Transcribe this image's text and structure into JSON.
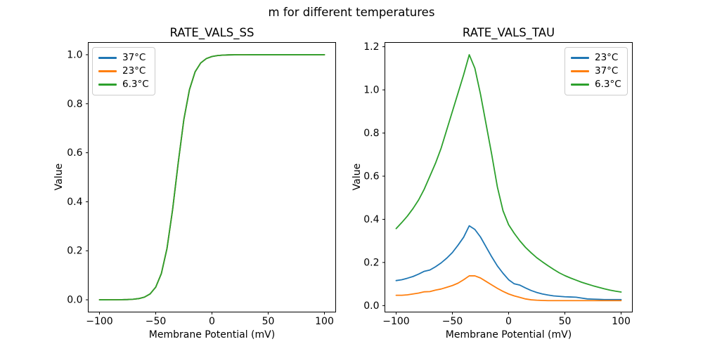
{
  "figure": {
    "suptitle": "m for different temperatures",
    "background_color": "#ffffff",
    "text_color": "#000000",
    "spine_color": "#000000",
    "palette": {
      "blue": "#1f77b4",
      "orange": "#ff7f0e",
      "green": "#2ca02c"
    }
  },
  "chart_data": [
    {
      "type": "line",
      "title": "RATE_VALS_SS",
      "xlabel": "Membrane Potential (mV)",
      "ylabel": "Value",
      "grid": false,
      "legend_position": "upper-left",
      "xlim": [
        -110,
        110
      ],
      "ylim": [
        -0.05,
        1.05
      ],
      "xticks": [
        -100,
        -50,
        0,
        50,
        100
      ],
      "xtick_labels": [
        "−100",
        "−50",
        "0",
        "50",
        "100"
      ],
      "yticks": [
        0.0,
        0.2,
        0.4,
        0.6,
        0.8,
        1.0
      ],
      "ytick_labels": [
        "0.0",
        "0.2",
        "0.4",
        "0.6",
        "0.8",
        "1.0"
      ],
      "x": [
        -100,
        -95,
        -90,
        -85,
        -80,
        -75,
        -70,
        -65,
        -60,
        -55,
        -50,
        -45,
        -40,
        -35,
        -30,
        -25,
        -20,
        -15,
        -10,
        -5,
        0,
        5,
        10,
        15,
        20,
        25,
        30,
        35,
        40,
        45,
        50,
        55,
        60,
        65,
        70,
        75,
        80,
        85,
        90,
        95,
        100
      ],
      "series": [
        {
          "name": "37°C",
          "color": "#1f77b4",
          "values": [
            0.0,
            0.0,
            0.0001,
            0.0002,
            0.0004,
            0.001,
            0.0022,
            0.0049,
            0.0109,
            0.0239,
            0.0515,
            0.1068,
            0.2087,
            0.3674,
            0.5589,
            0.7352,
            0.8575,
            0.93,
            0.9664,
            0.9843,
            0.9927,
            0.9966,
            0.9984,
            0.9993,
            0.9997,
            0.9998,
            0.9999,
            1.0,
            1.0,
            1.0,
            1.0,
            1.0,
            1.0,
            1.0,
            1.0,
            1.0,
            1.0,
            1.0,
            1.0,
            1.0,
            1.0
          ]
        },
        {
          "name": "23°C",
          "color": "#ff7f0e",
          "values": [
            0.0,
            0.0,
            0.0001,
            0.0002,
            0.0004,
            0.001,
            0.0022,
            0.0049,
            0.0109,
            0.0239,
            0.0515,
            0.1068,
            0.2087,
            0.3674,
            0.5589,
            0.7352,
            0.8575,
            0.93,
            0.9664,
            0.9843,
            0.9927,
            0.9966,
            0.9984,
            0.9993,
            0.9997,
            0.9998,
            0.9999,
            1.0,
            1.0,
            1.0,
            1.0,
            1.0,
            1.0,
            1.0,
            1.0,
            1.0,
            1.0,
            1.0,
            1.0,
            1.0,
            1.0
          ]
        },
        {
          "name": "6.3°C",
          "color": "#2ca02c",
          "values": [
            0.0,
            0.0,
            0.0001,
            0.0002,
            0.0004,
            0.001,
            0.0022,
            0.0049,
            0.0109,
            0.0239,
            0.0515,
            0.1068,
            0.2087,
            0.3674,
            0.5589,
            0.7352,
            0.8575,
            0.93,
            0.9664,
            0.9843,
            0.9927,
            0.9966,
            0.9984,
            0.9993,
            0.9997,
            0.9998,
            0.9999,
            1.0,
            1.0,
            1.0,
            1.0,
            1.0,
            1.0,
            1.0,
            1.0,
            1.0,
            1.0,
            1.0,
            1.0,
            1.0,
            1.0
          ]
        }
      ]
    },
    {
      "type": "line",
      "title": "RATE_VALS_TAU",
      "xlabel": "Membrane Potential (mV)",
      "ylabel": "Value",
      "grid": false,
      "legend_position": "upper-right",
      "xlim": [
        -110,
        110
      ],
      "ylim": [
        -0.0298,
        1.2198
      ],
      "xticks": [
        -100,
        -50,
        0,
        50,
        100
      ],
      "xtick_labels": [
        "−100",
        "−50",
        "0",
        "50",
        "100"
      ],
      "yticks": [
        0.0,
        0.2,
        0.4,
        0.6,
        0.8,
        1.0,
        1.2
      ],
      "ytick_labels": [
        "0.0",
        "0.2",
        "0.4",
        "0.6",
        "0.8",
        "1.0",
        "1.2"
      ],
      "x": [
        -100,
        -95,
        -90,
        -85,
        -80,
        -75,
        -70,
        -65,
        -60,
        -55,
        -50,
        -45,
        -40,
        -35,
        -30,
        -25,
        -20,
        -15,
        -10,
        -5,
        0,
        5,
        10,
        15,
        20,
        25,
        30,
        35,
        40,
        45,
        50,
        55,
        60,
        65,
        70,
        75,
        80,
        85,
        90,
        95,
        100
      ],
      "series": [
        {
          "name": "23°C",
          "color": "#1f77b4",
          "values": [
            0.116,
            0.12,
            0.127,
            0.135,
            0.146,
            0.159,
            0.165,
            0.18,
            0.198,
            0.22,
            0.246,
            0.28,
            0.317,
            0.37,
            0.353,
            0.318,
            0.272,
            0.226,
            0.184,
            0.15,
            0.12,
            0.101,
            0.095,
            0.082,
            0.07,
            0.061,
            0.054,
            0.049,
            0.045,
            0.043,
            0.041,
            0.04,
            0.039,
            0.035,
            0.031,
            0.03,
            0.029,
            0.028,
            0.028,
            0.028,
            0.028
          ]
        },
        {
          "name": "37°C",
          "color": "#ff7f0e",
          "values": [
            0.048,
            0.048,
            0.05,
            0.054,
            0.058,
            0.064,
            0.065,
            0.072,
            0.077,
            0.085,
            0.093,
            0.104,
            0.12,
            0.138,
            0.138,
            0.128,
            0.112,
            0.096,
            0.08,
            0.066,
            0.054,
            0.045,
            0.038,
            0.031,
            0.027,
            0.025,
            0.024,
            0.023,
            0.023,
            0.023,
            0.023,
            0.023,
            0.023,
            0.023,
            0.023,
            0.023,
            0.023,
            0.023,
            0.023,
            0.023,
            0.023
          ]
        },
        {
          "name": "6.3°C",
          "color": "#2ca02c",
          "values": [
            0.357,
            0.385,
            0.415,
            0.45,
            0.49,
            0.54,
            0.6,
            0.66,
            0.73,
            0.815,
            0.9,
            0.985,
            1.07,
            1.163,
            1.1,
            0.98,
            0.84,
            0.7,
            0.55,
            0.44,
            0.375,
            0.335,
            0.3,
            0.27,
            0.245,
            0.222,
            0.203,
            0.185,
            0.168,
            0.152,
            0.139,
            0.128,
            0.118,
            0.108,
            0.1,
            0.092,
            0.085,
            0.078,
            0.072,
            0.067,
            0.063
          ]
        }
      ]
    }
  ]
}
